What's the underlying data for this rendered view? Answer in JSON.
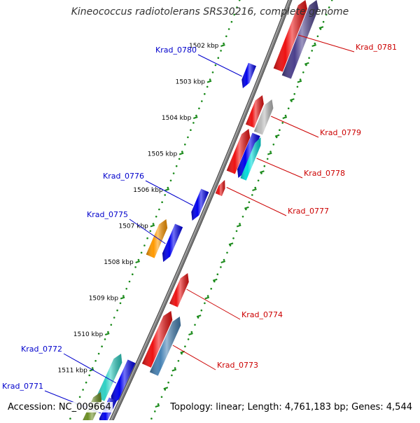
{
  "title": "Kineococcus radiotolerans SRS30216, complete genome",
  "footer": {
    "accession": "Accession: NC_009664",
    "summary": "Topology: linear; Length: 4,761,183 bp; Genes: 4,544"
  },
  "colors": {
    "backbone": "#7a7a7a",
    "tick": "#1a8a1a",
    "forward_label": "#0000cc",
    "reverse_label": "#cc0000"
  },
  "ticks": [
    {
      "kbp": 1502,
      "label": "1502 kbp"
    },
    {
      "kbp": 1503,
      "label": "1503 kbp"
    },
    {
      "kbp": 1504,
      "label": "1504 kbp"
    },
    {
      "kbp": 1505,
      "label": "1505 kbp"
    },
    {
      "kbp": 1506,
      "label": "1506 kbp"
    },
    {
      "kbp": 1507,
      "label": "1507 kbp"
    },
    {
      "kbp": 1508,
      "label": "1508 kbp"
    },
    {
      "kbp": 1509,
      "label": "1509 kbp"
    },
    {
      "kbp": 1510,
      "label": "1510 kbp"
    },
    {
      "kbp": 1511,
      "label": "1511 kbp"
    }
  ],
  "genes": [
    {
      "label": "Krad_0781",
      "strand": "reverse",
      "color": "#ee1111"
    },
    {
      "label": "",
      "strand": "reverse",
      "color": "#4b3f8c"
    },
    {
      "label": "Krad_0780",
      "strand": "forward",
      "color": "#0000ee"
    },
    {
      "label": "",
      "strand": "reverse",
      "color": "#ee1111"
    },
    {
      "label": "Krad_0779",
      "strand": "reverse",
      "color": "#bbbbbb"
    },
    {
      "label": "",
      "strand": "reverse",
      "color": "#ee1111"
    },
    {
      "label": "",
      "strand": "forward",
      "color": "#0000ee"
    },
    {
      "label": "Krad_0778",
      "strand": "reverse",
      "color": "#00dddd"
    },
    {
      "label": "Krad_0777",
      "strand": "reverse",
      "color": "#ee1111"
    },
    {
      "label": "Krad_0776",
      "strand": "forward",
      "color": "#0000ee"
    },
    {
      "label": "",
      "strand": "reverse",
      "color": "#ff9900"
    },
    {
      "label": "Krad_0775",
      "strand": "forward",
      "color": "#0000ee"
    },
    {
      "label": "Krad_0774",
      "strand": "reverse",
      "color": "#ee1111"
    },
    {
      "label": "",
      "strand": "reverse",
      "color": "#ee1111"
    },
    {
      "label": "Krad_0773",
      "strand": "reverse",
      "color": "#4682b4"
    },
    {
      "label": "",
      "strand": "reverse",
      "color": "#2ed1c4"
    },
    {
      "label": "Krad_0772",
      "strand": "forward",
      "color": "#0000ee"
    },
    {
      "label": "",
      "strand": "reverse",
      "color": "#6b8e23"
    },
    {
      "label": "Krad_0771",
      "strand": "forward",
      "color": "#0000ee"
    }
  ]
}
